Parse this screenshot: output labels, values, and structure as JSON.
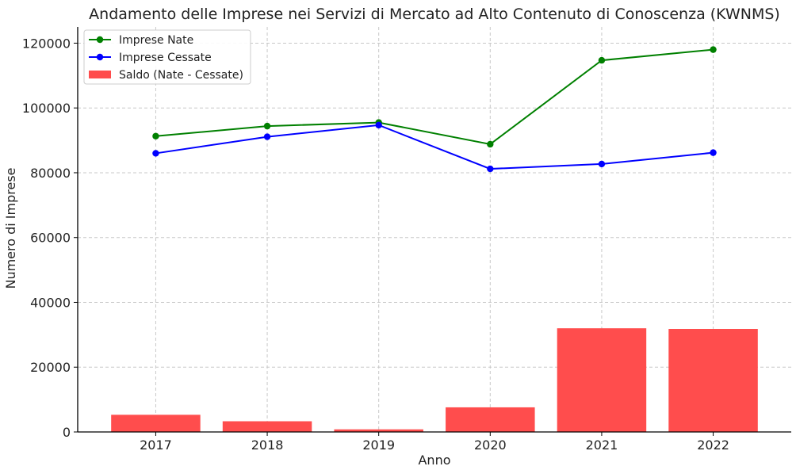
{
  "chart_data": {
    "type": "bar",
    "title": "Andamento delle Imprese nei Servizi di Mercato ad Alto Contenuto di Conoscenza (KWNMS)",
    "xlabel": "Anno",
    "ylabel": "Numero di Imprese",
    "categories": [
      "2017",
      "2018",
      "2019",
      "2020",
      "2021",
      "2022"
    ],
    "ylim": [
      0,
      125000
    ],
    "yticks": [
      0,
      20000,
      40000,
      60000,
      80000,
      100000,
      120000
    ],
    "grid": true,
    "legend_position": "top-left",
    "series": [
      {
        "name": "Imprese Nate",
        "kind": "line",
        "color": "#008000",
        "values": [
          91300,
          94400,
          95500,
          88800,
          114700,
          118000
        ]
      },
      {
        "name": "Imprese Cessate",
        "kind": "line",
        "color": "#0000ff",
        "values": [
          86000,
          91100,
          94700,
          81200,
          82700,
          86200
        ]
      },
      {
        "name": "Saldo (Nate - Cessate)",
        "kind": "bar",
        "color": "#ff4d4d",
        "values": [
          5300,
          3300,
          800,
          7600,
          32000,
          31800
        ]
      }
    ]
  }
}
